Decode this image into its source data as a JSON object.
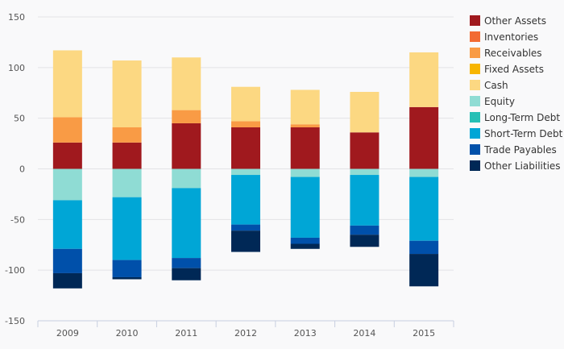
{
  "chart_data": {
    "type": "bar",
    "stacked": true,
    "categories": [
      "2009",
      "2010",
      "2011",
      "2012",
      "2013",
      "2014",
      "2015"
    ],
    "ylim": [
      -150,
      150
    ],
    "yticks": [
      150,
      100,
      50,
      0,
      -50,
      -100,
      -150
    ],
    "grid": true,
    "legend_position": "right",
    "series": [
      {
        "name": "Other Assets",
        "color": "#a0191e",
        "values": [
          26,
          26,
          45,
          41,
          41,
          36,
          61
        ]
      },
      {
        "name": "Inventories",
        "color": "#f26b32",
        "values": [
          0,
          0,
          0,
          0,
          0,
          0,
          0
        ]
      },
      {
        "name": "Receivables",
        "color": "#f99b45",
        "values": [
          25,
          15,
          13,
          6,
          3,
          0,
          0
        ]
      },
      {
        "name": "Fixed Assets",
        "color": "#f7b500",
        "values": [
          0,
          0,
          0,
          0,
          0,
          0,
          0
        ]
      },
      {
        "name": "Cash",
        "color": "#fcd882",
        "values": [
          66,
          66,
          52,
          34,
          34,
          40,
          54
        ]
      },
      {
        "name": "Equity",
        "color": "#8fdcd4",
        "values": [
          -31,
          -28,
          -19,
          -6,
          -8,
          -6,
          -8
        ]
      },
      {
        "name": "Long-Term Debt",
        "color": "#26bfb5",
        "values": [
          0,
          0,
          0,
          0,
          0,
          0,
          0
        ]
      },
      {
        "name": "Short-Term Debt",
        "color": "#00a6d6",
        "values": [
          -48,
          -62,
          -69,
          -49,
          -60,
          -50,
          -63
        ]
      },
      {
        "name": "Trade Payables",
        "color": "#0050aa",
        "values": [
          -24,
          -17,
          -10,
          -6,
          -6,
          -9,
          -13
        ]
      },
      {
        "name": "Other Liabilities",
        "color": "#002856",
        "values": [
          -15,
          -2,
          -12,
          -21,
          -5,
          -12,
          -32
        ]
      }
    ]
  }
}
